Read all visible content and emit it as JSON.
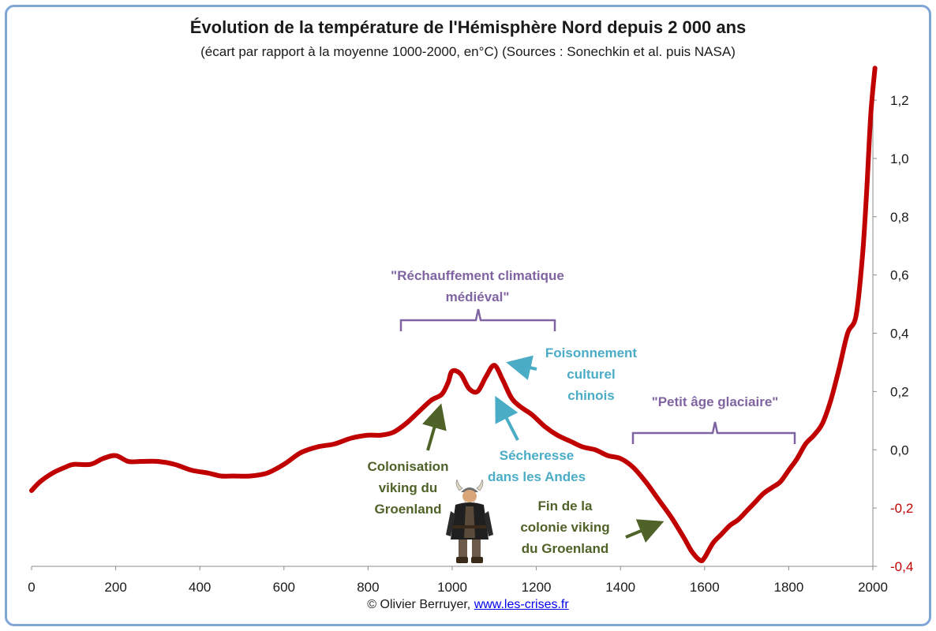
{
  "chart_data": {
    "type": "line",
    "title": "Évolution de la température de l'Hémisphère Nord depuis 2 000 ans",
    "subtitle": "(écart par rapport à la moyenne 1000-2000, en°C) (Sources : Sonechkin et al. puis NASA)",
    "xlabel": "",
    "ylabel": "",
    "xlim": [
      0,
      2000
    ],
    "ylim": [
      -0.4,
      1.3
    ],
    "x_ticks": [
      "0",
      "200",
      "400",
      "600",
      "800",
      "1000",
      "1200",
      "1400",
      "1600",
      "1800",
      "2000"
    ],
    "y_ticks": [
      {
        "label": "1,2",
        "value": 1.2
      },
      {
        "label": "1,0",
        "value": 1.0
      },
      {
        "label": "0,8",
        "value": 0.8
      },
      {
        "label": "0,6",
        "value": 0.6
      },
      {
        "label": "0,4",
        "value": 0.4
      },
      {
        "label": "0,2",
        "value": 0.2
      },
      {
        "label": "0,0",
        "value": 0.0
      },
      {
        "label": "-0,2",
        "value": -0.2
      },
      {
        "label": "-0,4",
        "value": -0.4
      }
    ],
    "grid": false,
    "y_axis_side": "right",
    "series_color": "#c00000",
    "negative_tick_color": "#c00000",
    "series": [
      {
        "x": [
          0,
          20,
          50,
          80,
          100,
          140,
          170,
          200,
          230,
          260,
          300,
          340,
          380,
          420,
          450,
          480,
          520,
          560,
          600,
          640,
          680,
          720,
          760,
          800,
          830,
          860,
          890,
          920,
          950,
          975,
          990,
          1000,
          1020,
          1040,
          1060,
          1080,
          1100,
          1120,
          1140,
          1160,
          1190,
          1220,
          1250,
          1280,
          1310,
          1340,
          1370,
          1400,
          1430,
          1460,
          1490,
          1520,
          1550,
          1570,
          1590,
          1600,
          1620,
          1640,
          1660,
          1680,
          1700,
          1720,
          1740,
          1760,
          1780,
          1800,
          1820,
          1840,
          1860,
          1880,
          1900,
          1920,
          1940,
          1960,
          1975,
          1985,
          1995,
          2005
        ],
        "y": [
          -0.14,
          -0.11,
          -0.08,
          -0.06,
          -0.05,
          -0.05,
          -0.03,
          -0.02,
          -0.04,
          -0.04,
          -0.04,
          -0.05,
          -0.07,
          -0.08,
          -0.09,
          -0.09,
          -0.09,
          -0.08,
          -0.05,
          -0.01,
          0.01,
          0.02,
          0.04,
          0.05,
          0.05,
          0.06,
          0.09,
          0.13,
          0.17,
          0.19,
          0.23,
          0.27,
          0.26,
          0.21,
          0.2,
          0.25,
          0.29,
          0.24,
          0.18,
          0.15,
          0.12,
          0.08,
          0.05,
          0.03,
          0.01,
          0.0,
          -0.02,
          -0.03,
          -0.06,
          -0.11,
          -0.17,
          -0.23,
          -0.3,
          -0.35,
          -0.38,
          -0.37,
          -0.32,
          -0.29,
          -0.26,
          -0.24,
          -0.21,
          -0.18,
          -0.15,
          -0.13,
          -0.11,
          -0.07,
          -0.03,
          0.02,
          0.05,
          0.09,
          0.17,
          0.28,
          0.4,
          0.46,
          0.66,
          0.88,
          1.15,
          1.31
        ]
      }
    ],
    "annotations": [
      {
        "lines": [
          "\"Réchauffement climatique",
          "médiéval\""
        ],
        "color": "#8064a2"
      },
      {
        "lines": [
          "Foisonnement",
          "culturel",
          "chinois"
        ],
        "color": "#4bacc6"
      },
      {
        "lines": [
          "\"Petit âge glaciaire\""
        ],
        "color": "#8064a2"
      },
      {
        "lines": [
          "Sécheresse",
          "dans les Andes"
        ],
        "color": "#4bacc6"
      },
      {
        "lines": [
          "Colonisation",
          "viking du",
          "Groenland"
        ],
        "color": "#4f6228"
      },
      {
        "lines": [
          "Fin de la",
          "colonie viking",
          "du Groenland"
        ],
        "color": "#4f6228"
      }
    ]
  },
  "footer": {
    "copyright": "© Olivier Berruyer,",
    "link": "www.les-crises.fr"
  }
}
